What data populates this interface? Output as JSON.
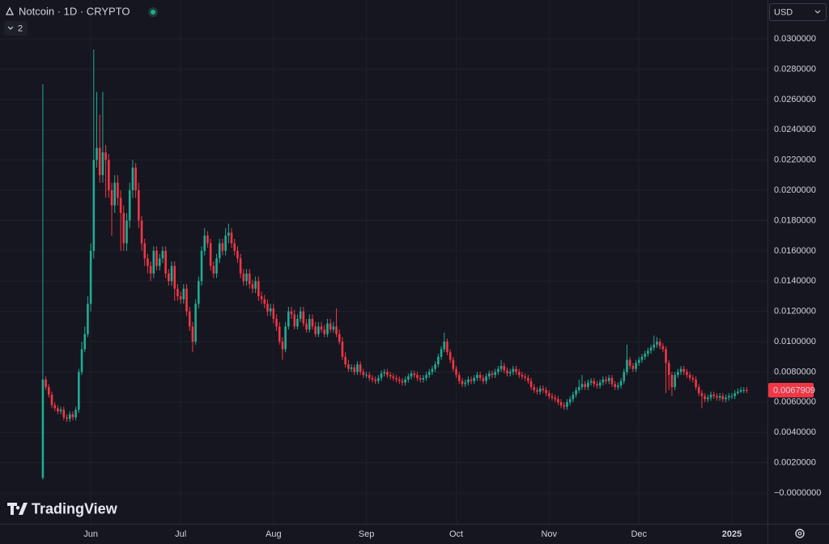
{
  "ui": {
    "currency": "USD",
    "indicator_count": "2",
    "watermark": "TradingView"
  },
  "chart_data": {
    "type": "candlestick",
    "title": "Notcoin · 1D · CRYPTO",
    "up_color": "#22ab94",
    "down_color": "#f23645",
    "grid": true,
    "last_price": 0.0067909,
    "xlim": [
      -14.3,
      241.9
    ],
    "xticks": [
      {
        "value": 16,
        "label": "Jun"
      },
      {
        "value": 46,
        "label": "Jul"
      },
      {
        "value": 77,
        "label": "Aug"
      },
      {
        "value": 108,
        "label": "Sep"
      },
      {
        "value": 138,
        "label": "Oct"
      },
      {
        "value": 169,
        "label": "Nov"
      },
      {
        "value": 199,
        "label": "Dec"
      },
      {
        "value": 230,
        "label": "2025"
      }
    ],
    "ylim": [
      -0.00203,
      0.03257
    ],
    "yticks": [
      {
        "value": 0,
        "label": "−0.0000000"
      },
      {
        "value": 0.002,
        "label": "0.0020000"
      },
      {
        "value": 0.004,
        "label": "0.0040000"
      },
      {
        "value": 0.006,
        "label": "0.0060000"
      },
      {
        "value": 0.008,
        "label": "0.0080000"
      },
      {
        "value": 0.01,
        "label": "0.0100000"
      },
      {
        "value": 0.012,
        "label": "0.0120000"
      },
      {
        "value": 0.014,
        "label": "0.0140000"
      },
      {
        "value": 0.016,
        "label": "0.0160000"
      },
      {
        "value": 0.018,
        "label": "0.0180000"
      },
      {
        "value": 0.02,
        "label": "0.0200000"
      },
      {
        "value": 0.022,
        "label": "0.0220000"
      },
      {
        "value": 0.024,
        "label": "0.0240000"
      },
      {
        "value": 0.026,
        "label": "0.0260000"
      },
      {
        "value": 0.028,
        "label": "0.0280000"
      },
      {
        "value": 0.03,
        "label": "0.0300000"
      }
    ],
    "x": [
      0,
      1,
      2,
      3,
      4,
      5,
      6,
      7,
      8,
      9,
      10,
      11,
      12,
      13,
      14,
      15,
      16,
      17,
      18,
      19,
      20,
      21,
      22,
      23,
      24,
      25,
      26,
      27,
      28,
      29,
      30,
      31,
      32,
      33,
      34,
      35,
      36,
      37,
      38,
      39,
      40,
      41,
      42,
      43,
      44,
      45,
      46,
      47,
      48,
      49,
      50,
      51,
      52,
      53,
      54,
      55,
      56,
      57,
      58,
      59,
      60,
      61,
      62,
      63,
      64,
      65,
      66,
      67,
      68,
      69,
      70,
      71,
      72,
      73,
      74,
      75,
      76,
      77,
      78,
      79,
      80,
      81,
      82,
      83,
      84,
      85,
      86,
      87,
      88,
      89,
      90,
      91,
      92,
      93,
      94,
      95,
      96,
      97,
      98,
      99,
      100,
      101,
      102,
      103,
      104,
      105,
      106,
      107,
      108,
      109,
      110,
      111,
      112,
      113,
      114,
      115,
      116,
      117,
      118,
      119,
      120,
      121,
      122,
      123,
      124,
      125,
      126,
      127,
      128,
      129,
      130,
      131,
      132,
      133,
      134,
      135,
      136,
      137,
      138,
      139,
      140,
      141,
      142,
      143,
      144,
      145,
      146,
      147,
      148,
      149,
      150,
      151,
      152,
      153,
      154,
      155,
      156,
      157,
      158,
      159,
      160,
      161,
      162,
      163,
      164,
      165,
      166,
      167,
      168,
      169,
      170,
      171,
      172,
      173,
      174,
      175,
      176,
      177,
      178,
      179,
      180,
      181,
      182,
      183,
      184,
      185,
      186,
      187,
      188,
      189,
      190,
      191,
      192,
      193,
      194,
      195,
      196,
      197,
      198,
      199,
      200,
      201,
      202,
      203,
      204,
      205,
      206,
      207,
      208,
      209,
      210,
      211,
      212,
      213,
      214,
      215,
      216,
      217,
      218,
      219,
      220,
      221,
      222,
      223,
      224,
      225,
      226,
      227,
      228,
      229,
      230,
      231,
      232,
      233,
      234,
      235
    ],
    "open": [
      0.001,
      0.0075,
      0.007,
      0.0065,
      0.0058,
      0.0056,
      0.0054,
      0.0055,
      0.005,
      0.0049,
      0.0052,
      0.005,
      0.0055,
      0.008,
      0.0095,
      0.0105,
      0.0125,
      0.016,
      0.022,
      0.0228,
      0.021,
      0.0225,
      0.022,
      0.02,
      0.019,
      0.0205,
      0.0195,
      0.0185,
      0.0165,
      0.018,
      0.02,
      0.0215,
      0.02,
      0.018,
      0.0165,
      0.0155,
      0.015,
      0.0145,
      0.016,
      0.015,
      0.0155,
      0.016,
      0.0145,
      0.014,
      0.015,
      0.0135,
      0.013,
      0.0128,
      0.0135,
      0.012,
      0.011,
      0.01,
      0.0125,
      0.014,
      0.016,
      0.017,
      0.0165,
      0.015,
      0.0145,
      0.0155,
      0.0165,
      0.016,
      0.017,
      0.0172,
      0.0165,
      0.016,
      0.0155,
      0.0145,
      0.014,
      0.0145,
      0.0138,
      0.0135,
      0.014,
      0.013,
      0.0128,
      0.0125,
      0.012,
      0.0122,
      0.0115,
      0.011,
      0.01,
      0.0095,
      0.011,
      0.012,
      0.0118,
      0.011,
      0.0115,
      0.012,
      0.0112,
      0.0108,
      0.0115,
      0.011,
      0.0105,
      0.011,
      0.0108,
      0.0105,
      0.0112,
      0.0108,
      0.011,
      0.0105,
      0.01,
      0.009,
      0.0085,
      0.0082,
      0.0083,
      0.008,
      0.0085,
      0.008,
      0.0078,
      0.0078,
      0.0076,
      0.0075,
      0.0074,
      0.0076,
      0.0079,
      0.008,
      0.0078,
      0.0077,
      0.0076,
      0.0075,
      0.0074,
      0.0073,
      0.0075,
      0.0077,
      0.0079,
      0.0078,
      0.0076,
      0.0075,
      0.0076,
      0.0078,
      0.008,
      0.0082,
      0.0085,
      0.009,
      0.0095,
      0.01,
      0.0093,
      0.0088,
      0.0082,
      0.0078,
      0.0074,
      0.0072,
      0.0073,
      0.0075,
      0.0074,
      0.0076,
      0.0078,
      0.0076,
      0.0074,
      0.0077,
      0.0079,
      0.0078,
      0.008,
      0.0082,
      0.0084,
      0.0081,
      0.0079,
      0.008,
      0.0082,
      0.008,
      0.0078,
      0.0077,
      0.0076,
      0.0074,
      0.007,
      0.0068,
      0.0067,
      0.0069,
      0.0068,
      0.0066,
      0.0064,
      0.0063,
      0.0062,
      0.006,
      0.0058,
      0.0057,
      0.006,
      0.0062,
      0.0065,
      0.0068,
      0.007,
      0.0072,
      0.007,
      0.0073,
      0.0074,
      0.0072,
      0.0071,
      0.0073,
      0.0075,
      0.0074,
      0.0076,
      0.0072,
      0.007,
      0.0071,
      0.0074,
      0.008,
      0.0088,
      0.0084,
      0.0082,
      0.0086,
      0.0088,
      0.009,
      0.0092,
      0.0094,
      0.0096,
      0.0098,
      0.01,
      0.0097,
      0.0095,
      0.0086,
      0.0078,
      0.007,
      0.0078,
      0.008,
      0.0082,
      0.008,
      0.0078,
      0.0076,
      0.0075,
      0.007,
      0.0066,
      0.0064,
      0.0062,
      0.0063,
      0.0065,
      0.0064,
      0.0063,
      0.0064,
      0.0062,
      0.0063,
      0.0064,
      0.0064,
      0.0066,
      0.0067,
      0.0068,
      0.0068
    ],
    "high": [
      0.027,
      0.0077,
      0.0072,
      0.0067,
      0.006,
      0.0058,
      0.0057,
      0.0057,
      0.0052,
      0.0054,
      0.0054,
      0.0057,
      0.0082,
      0.01,
      0.011,
      0.013,
      0.0165,
      0.0293,
      0.0265,
      0.025,
      0.0265,
      0.023,
      0.0224,
      0.0205,
      0.021,
      0.021,
      0.02,
      0.019,
      0.0185,
      0.0205,
      0.022,
      0.0218,
      0.0205,
      0.0183,
      0.0168,
      0.0158,
      0.0153,
      0.0163,
      0.0163,
      0.0158,
      0.0163,
      0.0163,
      0.0148,
      0.0153,
      0.0153,
      0.0138,
      0.0133,
      0.0138,
      0.0138,
      0.0123,
      0.0113,
      0.0128,
      0.0143,
      0.0163,
      0.0175,
      0.0173,
      0.0168,
      0.0153,
      0.0158,
      0.0168,
      0.0168,
      0.0175,
      0.0178,
      0.0175,
      0.0168,
      0.0163,
      0.0158,
      0.0148,
      0.0148,
      0.0148,
      0.0141,
      0.0143,
      0.0143,
      0.0133,
      0.0131,
      0.0128,
      0.0125,
      0.0125,
      0.0118,
      0.0113,
      0.0103,
      0.0113,
      0.0123,
      0.0123,
      0.0121,
      0.0118,
      0.0123,
      0.0123,
      0.0115,
      0.0118,
      0.0118,
      0.0113,
      0.0113,
      0.0113,
      0.0111,
      0.0115,
      0.0115,
      0.0113,
      0.0122,
      0.0108,
      0.0103,
      0.0093,
      0.0088,
      0.0085,
      0.0085,
      0.0087,
      0.0087,
      0.0082,
      0.008,
      0.008,
      0.0078,
      0.0077,
      0.0078,
      0.0081,
      0.0082,
      0.0082,
      0.008,
      0.0079,
      0.0078,
      0.0077,
      0.0076,
      0.0077,
      0.0079,
      0.0081,
      0.0081,
      0.008,
      0.0078,
      0.0078,
      0.008,
      0.0082,
      0.0084,
      0.0087,
      0.0092,
      0.0097,
      0.0106,
      0.0102,
      0.0095,
      0.009,
      0.0084,
      0.008,
      0.0076,
      0.0075,
      0.0077,
      0.0077,
      0.0078,
      0.008,
      0.008,
      0.0078,
      0.0079,
      0.0081,
      0.0081,
      0.0082,
      0.0084,
      0.0088,
      0.0086,
      0.0083,
      0.0082,
      0.0084,
      0.0084,
      0.0082,
      0.008,
      0.0079,
      0.0078,
      0.0076,
      0.0072,
      0.007,
      0.0071,
      0.0071,
      0.007,
      0.0068,
      0.0066,
      0.0065,
      0.0064,
      0.0062,
      0.006,
      0.0062,
      0.0064,
      0.0067,
      0.007,
      0.0075,
      0.0078,
      0.0074,
      0.0075,
      0.0076,
      0.0076,
      0.0074,
      0.0075,
      0.0077,
      0.0077,
      0.0078,
      0.0078,
      0.0074,
      0.0073,
      0.0076,
      0.0082,
      0.0098,
      0.009,
      0.0086,
      0.0088,
      0.009,
      0.0092,
      0.0094,
      0.0096,
      0.0098,
      0.0104,
      0.0103,
      0.0102,
      0.0099,
      0.0097,
      0.0088,
      0.008,
      0.008,
      0.0082,
      0.0084,
      0.0084,
      0.0082,
      0.008,
      0.0078,
      0.0077,
      0.0072,
      0.0068,
      0.0066,
      0.0065,
      0.0067,
      0.0067,
      0.0066,
      0.0066,
      0.0066,
      0.0065,
      0.0066,
      0.0066,
      0.0068,
      0.0069,
      0.007,
      0.007,
      0.007
    ],
    "low": [
      0.0009,
      0.0068,
      0.0063,
      0.0056,
      0.0054,
      0.0052,
      0.0052,
      0.0048,
      0.0047,
      0.0047,
      0.0048,
      0.0048,
      0.0053,
      0.0078,
      0.0093,
      0.0103,
      0.012,
      0.0155,
      0.0215,
      0.0205,
      0.0205,
      0.0195,
      0.0195,
      0.017,
      0.0185,
      0.019,
      0.016,
      0.016,
      0.016,
      0.0175,
      0.0195,
      0.0195,
      0.0175,
      0.016,
      0.015,
      0.0145,
      0.014,
      0.0142,
      0.0147,
      0.0147,
      0.0152,
      0.0142,
      0.0137,
      0.0137,
      0.0127,
      0.0127,
      0.0125,
      0.0125,
      0.0117,
      0.0107,
      0.0093,
      0.0098,
      0.0122,
      0.0137,
      0.0157,
      0.0162,
      0.0147,
      0.0142,
      0.0142,
      0.0152,
      0.0157,
      0.0157,
      0.0165,
      0.0162,
      0.0157,
      0.0152,
      0.0142,
      0.0137,
      0.0137,
      0.0135,
      0.0132,
      0.0132,
      0.0127,
      0.0125,
      0.0122,
      0.0117,
      0.0117,
      0.0112,
      0.0107,
      0.0098,
      0.0088,
      0.0093,
      0.0108,
      0.0115,
      0.0108,
      0.0108,
      0.0113,
      0.011,
      0.0106,
      0.0106,
      0.0108,
      0.0103,
      0.0103,
      0.0106,
      0.0103,
      0.0103,
      0.0106,
      0.0106,
      0.0103,
      0.0098,
      0.0088,
      0.0083,
      0.008,
      0.008,
      0.0078,
      0.0078,
      0.0078,
      0.0076,
      0.0076,
      0.0074,
      0.0073,
      0.0072,
      0.0072,
      0.0074,
      0.0077,
      0.0076,
      0.0075,
      0.0074,
      0.0073,
      0.0072,
      0.0071,
      0.0071,
      0.0073,
      0.0075,
      0.0076,
      0.0074,
      0.0073,
      0.0073,
      0.0074,
      0.0076,
      0.0078,
      0.008,
      0.0083,
      0.0088,
      0.0093,
      0.0091,
      0.0086,
      0.008,
      0.0076,
      0.0072,
      0.007,
      0.007,
      0.0071,
      0.0072,
      0.0072,
      0.0074,
      0.0074,
      0.0072,
      0.0072,
      0.0075,
      0.0076,
      0.0076,
      0.0078,
      0.008,
      0.0079,
      0.0077,
      0.0077,
      0.0078,
      0.0078,
      0.0076,
      0.0075,
      0.0074,
      0.0072,
      0.0068,
      0.0066,
      0.0065,
      0.0065,
      0.0066,
      0.0064,
      0.0062,
      0.0061,
      0.006,
      0.0058,
      0.0056,
      0.0055,
      0.0055,
      0.0058,
      0.006,
      0.0063,
      0.0066,
      0.0068,
      0.0068,
      0.0068,
      0.0071,
      0.007,
      0.0069,
      0.0069,
      0.0071,
      0.0072,
      0.0072,
      0.007,
      0.0068,
      0.0068,
      0.0069,
      0.0072,
      0.0078,
      0.0082,
      0.008,
      0.008,
      0.0084,
      0.0086,
      0.0088,
      0.009,
      0.0092,
      0.0094,
      0.0096,
      0.0095,
      0.0093,
      0.0066,
      0.0068,
      0.0064,
      0.0068,
      0.0076,
      0.0078,
      0.0078,
      0.0076,
      0.0074,
      0.0073,
      0.0068,
      0.0064,
      0.0056,
      0.006,
      0.006,
      0.0061,
      0.0062,
      0.0061,
      0.0061,
      0.006,
      0.006,
      0.0061,
      0.0062,
      0.0062,
      0.0065,
      0.0066,
      0.0066,
      0.0066
    ],
    "close": [
      0.0075,
      0.007,
      0.0065,
      0.0058,
      0.0056,
      0.0054,
      0.0055,
      0.005,
      0.0049,
      0.0052,
      0.005,
      0.0055,
      0.008,
      0.0095,
      0.0105,
      0.0125,
      0.016,
      0.022,
      0.0228,
      0.021,
      0.0225,
      0.022,
      0.02,
      0.019,
      0.0205,
      0.0195,
      0.0185,
      0.0165,
      0.018,
      0.02,
      0.0215,
      0.02,
      0.018,
      0.0165,
      0.0155,
      0.015,
      0.0145,
      0.016,
      0.015,
      0.0155,
      0.016,
      0.0145,
      0.014,
      0.015,
      0.0135,
      0.013,
      0.0128,
      0.0135,
      0.012,
      0.011,
      0.01,
      0.0125,
      0.014,
      0.016,
      0.017,
      0.0165,
      0.015,
      0.0145,
      0.0155,
      0.0165,
      0.016,
      0.017,
      0.0172,
      0.0165,
      0.016,
      0.0155,
      0.0145,
      0.014,
      0.0145,
      0.0138,
      0.0135,
      0.014,
      0.013,
      0.0128,
      0.0125,
      0.012,
      0.0122,
      0.0115,
      0.011,
      0.01,
      0.0095,
      0.011,
      0.012,
      0.0118,
      0.011,
      0.0115,
      0.012,
      0.0112,
      0.0108,
      0.0115,
      0.011,
      0.0105,
      0.011,
      0.0108,
      0.0105,
      0.0112,
      0.0108,
      0.011,
      0.0105,
      0.01,
      0.009,
      0.0085,
      0.0082,
      0.0083,
      0.008,
      0.0085,
      0.008,
      0.0078,
      0.0078,
      0.0076,
      0.0075,
      0.0074,
      0.0076,
      0.0079,
      0.008,
      0.0078,
      0.0077,
      0.0076,
      0.0075,
      0.0074,
      0.0073,
      0.0075,
      0.0077,
      0.0079,
      0.0078,
      0.0076,
      0.0075,
      0.0076,
      0.0078,
      0.008,
      0.0082,
      0.0085,
      0.009,
      0.0095,
      0.01,
      0.0093,
      0.0088,
      0.0082,
      0.0078,
      0.0074,
      0.0072,
      0.0073,
      0.0075,
      0.0074,
      0.0076,
      0.0078,
      0.0076,
      0.0074,
      0.0077,
      0.0079,
      0.0078,
      0.008,
      0.0082,
      0.0084,
      0.0081,
      0.0079,
      0.008,
      0.0082,
      0.008,
      0.0078,
      0.0077,
      0.0076,
      0.0074,
      0.007,
      0.0068,
      0.0067,
      0.0069,
      0.0068,
      0.0066,
      0.0064,
      0.0063,
      0.0062,
      0.006,
      0.0058,
      0.0057,
      0.006,
      0.0062,
      0.0065,
      0.0068,
      0.007,
      0.0072,
      0.007,
      0.0073,
      0.0074,
      0.0072,
      0.0071,
      0.0073,
      0.0075,
      0.0074,
      0.0076,
      0.0072,
      0.007,
      0.0071,
      0.0074,
      0.008,
      0.0088,
      0.0084,
      0.0082,
      0.0086,
      0.0088,
      0.009,
      0.0092,
      0.0094,
      0.0096,
      0.0098,
      0.01,
      0.0097,
      0.0095,
      0.0086,
      0.0078,
      0.007,
      0.0078,
      0.008,
      0.0082,
      0.008,
      0.0078,
      0.0076,
      0.0075,
      0.007,
      0.0066,
      0.0064,
      0.0062,
      0.0063,
      0.0065,
      0.0064,
      0.0063,
      0.0064,
      0.0062,
      0.0063,
      0.0064,
      0.0064,
      0.0066,
      0.0067,
      0.0068,
      0.0068,
      0.0067909
    ]
  }
}
